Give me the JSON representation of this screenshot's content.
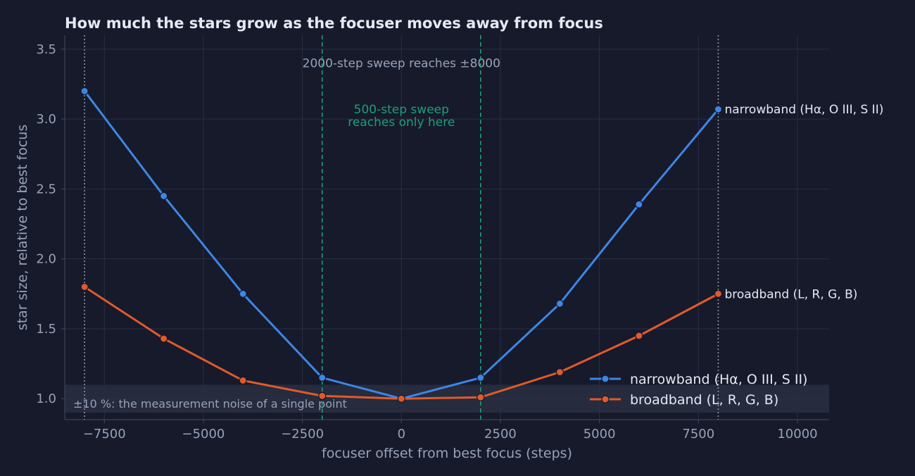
{
  "chart_data": {
    "type": "line",
    "title": "How much the stars grow as the focuser moves away from focus",
    "xlabel": "focuser offset from best focus (steps)",
    "ylabel": "star size, relative to best focus",
    "xlim": [
      -8500,
      10800
    ],
    "ylim": [
      0.85,
      3.6
    ],
    "xticks": [
      -7500,
      -5000,
      -2500,
      0,
      2500,
      5000,
      7500,
      10000
    ],
    "yticks": [
      1.0,
      1.5,
      2.0,
      2.5,
      3.0,
      3.5
    ],
    "xtick_labels": [
      "−7500",
      "−5000",
      "−2500",
      "0",
      "2500",
      "5000",
      "7500",
      "10000"
    ],
    "ytick_labels": [
      "1.0",
      "1.5",
      "2.0",
      "2.5",
      "3.0",
      "3.5"
    ],
    "grid": true,
    "legend_position": "bottom-right",
    "series": [
      {
        "name": "narrowband (Hα, O III, S II)",
        "color": "#3d86e4",
        "x": [
          -8000,
          -6000,
          -4000,
          -2000,
          0,
          2000,
          4000,
          6000,
          8000
        ],
        "y": [
          3.2,
          2.45,
          1.75,
          1.15,
          1.0,
          1.15,
          1.68,
          2.39,
          3.07
        ]
      },
      {
        "name": "broadband (L, R, G, B)",
        "color": "#e05a2b",
        "x": [
          -8000,
          -6000,
          -4000,
          -2000,
          0,
          2000,
          4000,
          6000,
          8000
        ],
        "y": [
          1.8,
          1.43,
          1.13,
          1.02,
          1.0,
          1.01,
          1.19,
          1.45,
          1.75
        ]
      }
    ],
    "noise_band": {
      "y_low": 0.9,
      "y_high": 1.1,
      "label": "±10 %: the measurement noise of a single point",
      "color": "#262b3e"
    },
    "reference_lines": {
      "sweep_2000": {
        "x": [
          -8000,
          8000
        ],
        "label": "2000-step sweep reaches ±8000",
        "color": "#8a93a8"
      },
      "sweep_500": {
        "x": [
          -2000,
          2000
        ],
        "label_line1": "500-step sweep",
        "label_line2": "reaches only here",
        "color": "#1f9e78"
      }
    },
    "colors": {
      "background": "#161a2b",
      "grid": "#2a2f44",
      "axis": "#454b63",
      "text": "#e6e9f2",
      "muted_text": "#98a2b8"
    }
  }
}
